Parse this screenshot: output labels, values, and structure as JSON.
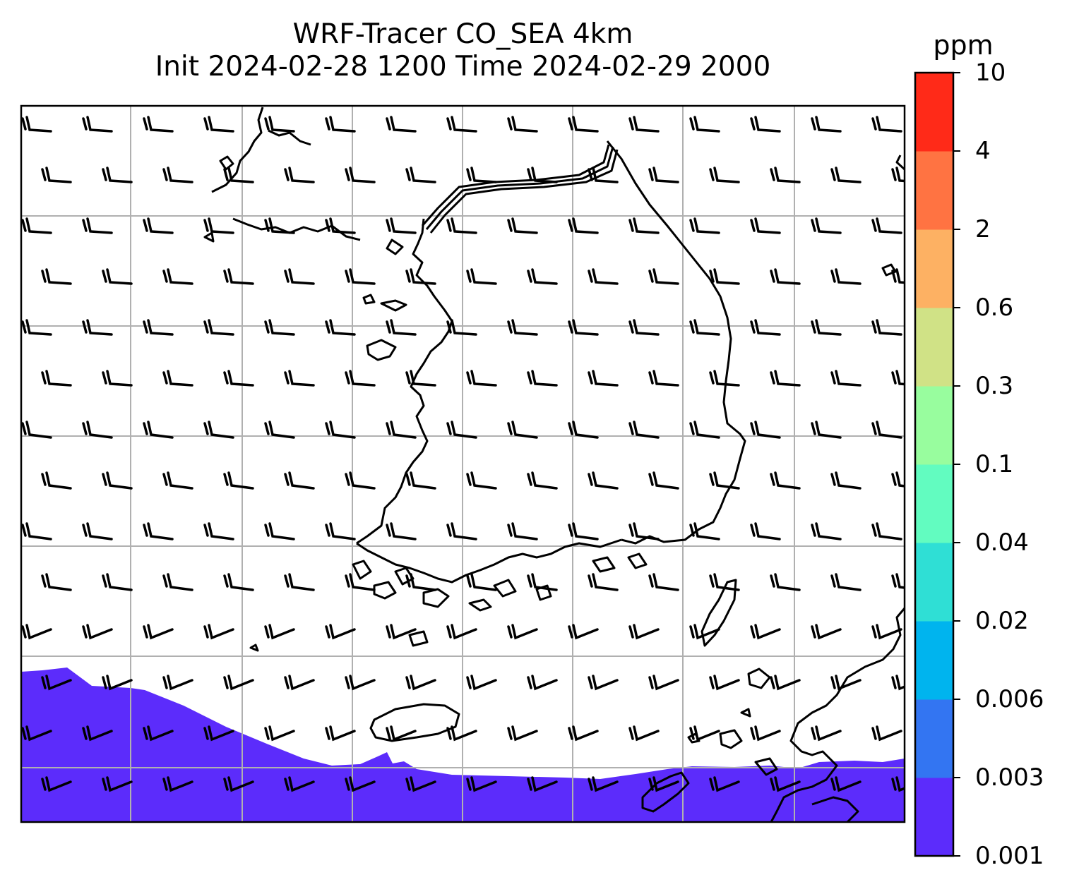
{
  "title": {
    "line1": "WRF-Tracer CO_SEA 4km",
    "line2": "Init 2024-02-28 1200 Time 2024-02-29 2000"
  },
  "colorbar": {
    "unit": "ppm",
    "levels": [
      "0.001",
      "0.003",
      "0.006",
      "0.02",
      "0.04",
      "0.1",
      "0.3",
      "0.6",
      "2",
      "4",
      "10"
    ],
    "colors": [
      "#5c2cfb",
      "#3375f2",
      "#00b4ee",
      "#2fdfd5",
      "#62fcc0",
      "#98fd9e",
      "#d0e286",
      "#fdb163",
      "#ff7342",
      "#ff2a18"
    ]
  },
  "map": {
    "tracer_fill_color": "#5c2cfb",
    "tracer_fill_level": "0.001",
    "gridlines": true,
    "gridline_color": "#b0b0b0",
    "coastline_color": "#000000",
    "wind_barbs": true,
    "wind_direction": "west-northwesterly"
  }
}
